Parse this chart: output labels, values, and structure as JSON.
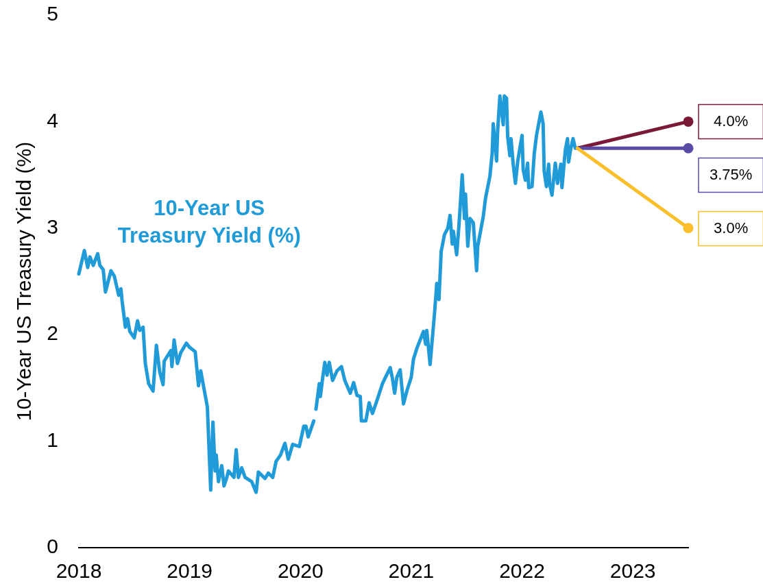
{
  "chart_data": {
    "type": "line",
    "ylabel": "10-Year US Treasury Yield (%)",
    "xlim": [
      2018,
      2023.5
    ],
    "xticks": [
      2018,
      2019,
      2020,
      2021,
      2022,
      2023
    ],
    "ylim": [
      0,
      5
    ],
    "yticks": [
      0,
      1,
      2,
      3,
      4,
      5
    ],
    "line_style": "solid",
    "series": [
      {
        "name": "10-Year US Treasury Yield (%)",
        "color": "#219bd8",
        "x": [
          2018.0,
          2018.05,
          2018.08,
          2018.1,
          2018.13,
          2018.17,
          2018.19,
          2018.22,
          2018.24,
          2018.29,
          2018.32,
          2018.36,
          2018.38,
          2018.39,
          2018.42,
          2018.44,
          2018.46,
          2018.5,
          2018.53,
          2018.55,
          2018.58,
          2018.6,
          2018.63,
          2018.67,
          2018.7,
          2018.73,
          2018.76,
          2018.77,
          2018.83,
          2018.84,
          2018.86,
          2018.89,
          2018.92,
          2018.97,
          2019.0,
          2019.05,
          2019.08,
          2019.1,
          2019.16,
          2019.19,
          2019.21,
          2019.23,
          2019.24,
          2019.26,
          2019.29,
          2019.31,
          2019.33,
          2019.35,
          2019.4,
          2019.42,
          2019.44,
          2019.47,
          2019.5,
          2019.56,
          2019.6,
          2019.62,
          2019.68,
          2019.71,
          2019.75,
          2019.78,
          2019.82,
          2019.86,
          2019.89,
          2019.93,
          2019.99,
          2020.03,
          2020.05,
          2020.07,
          2020.12,
          2020.13,
          2020.14,
          2020.17,
          2020.18,
          2020.2,
          2020.22,
          2020.24,
          2020.26,
          2020.29,
          2020.33,
          2020.37,
          2020.4,
          2020.45,
          2020.48,
          2020.51,
          2020.54,
          2020.55,
          2020.59,
          2020.62,
          2020.65,
          2020.69,
          2020.74,
          2020.81,
          2020.83,
          2020.85,
          2020.87,
          2020.9,
          2020.93,
          2020.96,
          2021.0,
          2021.02,
          2021.05,
          2021.11,
          2021.13,
          2021.14,
          2021.17,
          2021.21,
          2021.23,
          2021.25,
          2021.27,
          2021.3,
          2021.33,
          2021.35,
          2021.37,
          2021.38,
          2021.41,
          2021.43,
          2021.46,
          2021.48,
          2021.49,
          2021.51,
          2021.53,
          2021.56,
          2021.59,
          2021.6,
          2021.65,
          2021.67,
          2021.71,
          2021.73,
          2021.74,
          2021.77,
          2021.78,
          2021.8,
          2021.83,
          2021.84,
          2021.86,
          2021.87,
          2021.89,
          2021.9,
          2021.92,
          2021.94,
          2021.96,
          2021.98,
          2022.0,
          2022.01,
          2022.03,
          2022.05,
          2022.06,
          2022.09,
          2022.11,
          2022.13,
          2022.17,
          2022.19,
          2022.2,
          2022.22,
          2022.24,
          2022.25,
          2022.27,
          2022.3,
          2022.32,
          2022.35,
          2022.36,
          2022.39,
          2022.41,
          2022.42,
          2022.44,
          2022.46,
          2022.48
        ],
        "values": [
          2.57,
          2.79,
          2.63,
          2.73,
          2.65,
          2.76,
          2.65,
          2.61,
          2.4,
          2.6,
          2.55,
          2.37,
          2.43,
          2.32,
          2.07,
          2.15,
          2.03,
          1.97,
          2.13,
          2.04,
          2.07,
          1.73,
          1.54,
          1.47,
          1.9,
          1.65,
          1.53,
          1.75,
          1.85,
          1.7,
          1.95,
          1.73,
          1.83,
          1.92,
          1.88,
          1.84,
          1.52,
          1.66,
          1.32,
          0.54,
          1.18,
          0.72,
          0.87,
          0.62,
          0.77,
          0.58,
          0.64,
          0.72,
          0.66,
          0.92,
          0.66,
          0.75,
          0.66,
          0.62,
          0.52,
          0.71,
          0.65,
          0.7,
          0.66,
          0.81,
          0.87,
          0.98,
          0.83,
          0.97,
          0.95,
          1.14,
          1.14,
          1.04,
          1.19,
          null,
          1.3,
          1.54,
          1.42,
          1.59,
          1.74,
          1.62,
          1.74,
          1.57,
          1.66,
          1.7,
          1.57,
          1.45,
          1.55,
          1.43,
          1.42,
          1.19,
          1.19,
          1.36,
          1.26,
          1.38,
          1.54,
          1.69,
          1.59,
          1.45,
          1.6,
          1.67,
          1.35,
          1.47,
          1.6,
          1.77,
          1.87,
          2.03,
          1.91,
          2.04,
          1.72,
          2.2,
          2.48,
          2.33,
          2.78,
          2.94,
          3.0,
          3.12,
          2.85,
          2.97,
          2.75,
          3.02,
          3.5,
          3.09,
          3.32,
          2.83,
          3.09,
          3.05,
          2.6,
          2.83,
          3.11,
          3.28,
          3.49,
          3.7,
          3.98,
          3.63,
          3.92,
          4.24,
          3.97,
          4.24,
          4.22,
          3.86,
          3.68,
          3.84,
          3.6,
          3.42,
          3.62,
          3.75,
          3.87,
          3.55,
          3.45,
          3.61,
          3.38,
          3.39,
          3.7,
          3.87,
          4.09,
          3.98,
          3.53,
          3.39,
          3.6,
          3.41,
          3.31,
          3.61,
          3.42,
          3.6,
          3.38,
          3.73,
          3.84,
          3.62,
          3.75,
          3.84,
          3.75
        ]
      },
      {
        "color": "#7a1a37",
        "x": [
          2022.5,
          2023.5
        ],
        "values": [
          3.75,
          4.0
        ],
        "value_labels": [
          null,
          "4.0%"
        ],
        "marker": "circle"
      },
      {
        "color": "#5a4ba6",
        "x": [
          2022.5,
          2023.5
        ],
        "values": [
          3.75,
          3.75
        ],
        "value_labels": [
          null,
          "3.75%"
        ],
        "marker": "circle"
      },
      {
        "color": "#fbbf2c",
        "x": [
          2022.5,
          2023.5
        ],
        "values": [
          3.75,
          3.0
        ],
        "value_labels": [
          null,
          "3.0%"
        ],
        "marker": "circle"
      }
    ]
  }
}
